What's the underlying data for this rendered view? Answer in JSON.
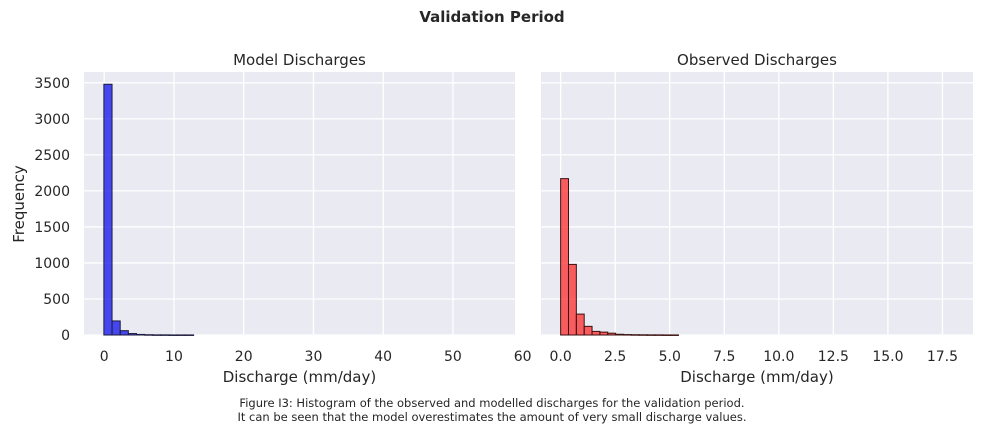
{
  "suptitle": "Validation Period",
  "caption": {
    "line1": "Figure I3: Histogram of the observed and modelled discharges for the validation period.",
    "line2": "It can be seen that the model overestimates the amount of very small discharge values."
  },
  "chart_data": [
    {
      "type": "bar",
      "histogram": true,
      "title": "Model Discharges",
      "xlabel": "Discharge (mm/day)",
      "ylabel": "Frequency",
      "xlim": [
        -2.9,
        58.9
      ],
      "ylim": [
        0,
        3650
      ],
      "xticks": [
        0,
        10,
        20,
        30,
        40,
        50,
        60
      ],
      "yticks": [
        0,
        500,
        1000,
        1500,
        2000,
        2500,
        3000,
        3500
      ],
      "bin_width": 1.17,
      "bin_start": -0.05,
      "values": [
        3480,
        195,
        60,
        20,
        8,
        4,
        2,
        2,
        1,
        1,
        1,
        0,
        0,
        0,
        0
      ],
      "color": "#0000ee",
      "edge_color": "#1a1a3a"
    },
    {
      "type": "bar",
      "histogram": true,
      "title": "Observed Discharges",
      "xlabel": "Discharge (mm/day)",
      "ylabel": "",
      "xlim": [
        -0.9,
        18.9
      ],
      "ylim": [
        0,
        3650
      ],
      "xticks": [
        0.0,
        2.5,
        5.0,
        7.5,
        10.0,
        12.5,
        15.0,
        17.5
      ],
      "xtick_labels": [
        "0.0",
        "2.5",
        "5.0",
        "7.5",
        "10.0",
        "12.5",
        "15.0",
        "17.5"
      ],
      "bin_width": 0.36,
      "bin_start": 0.0,
      "values": [
        2170,
        980,
        290,
        120,
        50,
        40,
        25,
        10,
        6,
        4,
        3,
        2,
        2,
        1,
        1
      ],
      "color": "#ff2020",
      "edge_color": "#3a1010"
    }
  ]
}
